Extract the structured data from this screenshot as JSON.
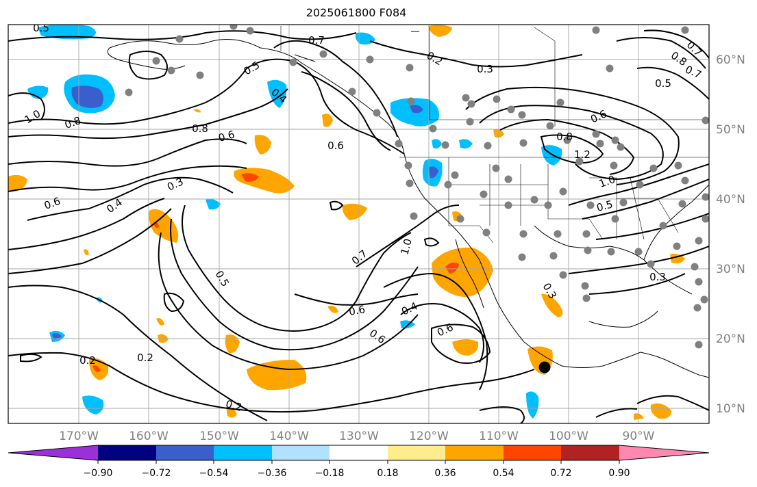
{
  "title": "2025061800 F084",
  "map": {
    "lon_ticks": [
      "170°W",
      "160°W",
      "150°W",
      "140°W",
      "130°W",
      "120°W",
      "110°W",
      "100°W",
      "90°W"
    ],
    "lat_ticks": [
      "60°N",
      "50°N",
      "40°N",
      "30°N",
      "20°N",
      "10°N"
    ],
    "grid": true,
    "station_marker_color": "#808080",
    "highlight_marker_color": "#000000",
    "contour_labels": [
      "0.7",
      "0.2",
      "0.3",
      "0.5",
      "0.4",
      "0.8",
      "0.6",
      "1.0",
      "0.8",
      "0.6",
      "0.3",
      "0.4",
      "0.6",
      "0.8",
      "1.2",
      "1.0",
      "0.5",
      "0.6",
      "0.5",
      "0.7",
      "0.8",
      "0.7",
      "1.0",
      "0.7",
      "0.5",
      "0.6",
      "0.4",
      "0.6",
      "0.6",
      "0.2",
      "0.2",
      "0.2",
      "0.3",
      "0.3",
      "0.5"
    ]
  },
  "colorbar": {
    "colors": [
      "#9b30d9",
      "#000080",
      "#3a5fcd",
      "#00bfff",
      "#b2e0ff",
      "#ffffff",
      "#ffec8b",
      "#ffa500",
      "#ff4500",
      "#b22222",
      "#ff88b0"
    ],
    "tick_labels": [
      "−0.90",
      "−0.72",
      "−0.54",
      "−0.36",
      "−0.18",
      "0.18",
      "0.36",
      "0.54",
      "0.72",
      "0.90"
    ]
  }
}
